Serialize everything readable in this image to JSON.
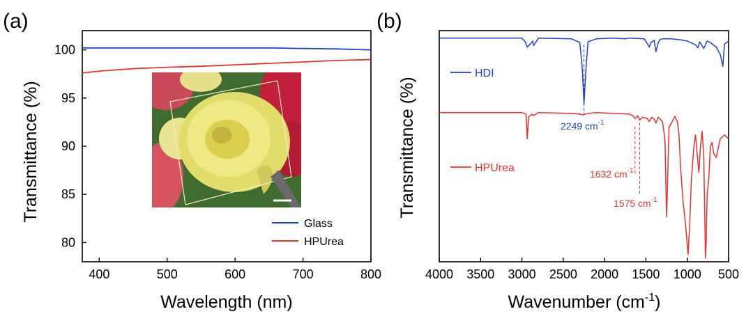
{
  "chart_data": [
    {
      "panel_label": "(a)",
      "type": "line",
      "xlabel": "Wavelength (nm)",
      "ylabel": "Transmittance (%)",
      "xlim": [
        375,
        800
      ],
      "ylim": [
        78,
        102
      ],
      "x_ticks": [
        400,
        500,
        600,
        700,
        800
      ],
      "y_ticks": [
        80,
        85,
        90,
        95,
        100
      ],
      "legend": {
        "placement": "bottom-right"
      },
      "grid": false,
      "series": [
        {
          "name": "Glass",
          "color": "#1f3fcf",
          "x": [
            375,
            450,
            500,
            550,
            600,
            650,
            700,
            750,
            800
          ],
          "values": [
            100.2,
            100.2,
            100.2,
            100.2,
            100.2,
            100.2,
            100.15,
            100.1,
            100.0
          ]
        },
        {
          "name": "HPUrea",
          "color": "#e8312f",
          "x": [
            375,
            400,
            450,
            500,
            550,
            600,
            650,
            700,
            750,
            800
          ],
          "values": [
            97.6,
            97.8,
            98.05,
            98.2,
            98.3,
            98.45,
            98.6,
            98.75,
            98.9,
            99.0
          ]
        }
      ],
      "inset": {
        "type": "photo",
        "subject": "yellow-flower-under-transparent-film"
      }
    },
    {
      "panel_label": "(b)",
      "type": "line",
      "xlabel": "Wavenumber (cm",
      "xlabel_superscript": "-1",
      "xlabel_suffix": ")",
      "ylabel": "Transmittance (%)",
      "xlim": [
        4000,
        500
      ],
      "x_ticks": [
        4000,
        3500,
        3000,
        2500,
        2000,
        1500,
        1000,
        500
      ],
      "y_ticks_shown": false,
      "series": [
        {
          "name": "HDI",
          "color": "#1f3fcf",
          "offset": 100,
          "x": [
            4000,
            3000,
            2960,
            2935,
            2900,
            2870,
            2858,
            2800,
            2400,
            2300,
            2270,
            2249,
            2225,
            2200,
            2100,
            1900,
            1750,
            1700,
            1520,
            1480,
            1460,
            1440,
            1400,
            1380,
            1350,
            1330,
            1300,
            1200,
            1100,
            1050,
            1000,
            900,
            870,
            850,
            800,
            760,
            720,
            650,
            600,
            570,
            550,
            500
          ],
          "values": [
            0,
            0,
            -5,
            -12,
            -8,
            -4,
            -10,
            0,
            -1,
            -6,
            -40,
            -88,
            -40,
            -5,
            -1,
            0,
            -1,
            0,
            -1,
            -8,
            -12,
            -6,
            -3,
            -18,
            -6,
            -2,
            -1,
            -1,
            -2,
            -3,
            -4,
            -9,
            -13,
            -5,
            -14,
            -4,
            -6,
            -12,
            -22,
            -38,
            -8,
            -4
          ]
        },
        {
          "name": "HPUrea",
          "color": "#e8312f",
          "offset": 0,
          "x": [
            4000,
            3000,
            2950,
            2935,
            2920,
            2880,
            2860,
            2800,
            2400,
            2300,
            2270,
            2200,
            2100,
            1900,
            1700,
            1660,
            1632,
            1600,
            1575,
            1540,
            1480,
            1460,
            1430,
            1400,
            1380,
            1350,
            1300,
            1270,
            1250,
            1220,
            1150,
            1120,
            1100,
            1080,
            1050,
            1020,
            990,
            970,
            950,
            920,
            900,
            880,
            860,
            840,
            820,
            800,
            780,
            770,
            760,
            740,
            720,
            700,
            680,
            650,
            600,
            550,
            500
          ],
          "values": [
            0,
            0,
            -2,
            -35,
            -6,
            -2,
            -4,
            0,
            -1,
            -2,
            -3,
            -1,
            0,
            -1,
            -2,
            -4,
            -8,
            -4,
            -10,
            -6,
            -8,
            -12,
            -6,
            -9,
            -14,
            -6,
            -12,
            -35,
            -140,
            -20,
            -5,
            -12,
            -30,
            -75,
            -120,
            -150,
            -190,
            -150,
            -90,
            -45,
            -30,
            -55,
            -80,
            -45,
            -25,
            -60,
            -195,
            -170,
            -110,
            -90,
            -45,
            -40,
            -55,
            -60,
            -35,
            -30,
            -35
          ]
        }
      ],
      "annotations": [
        {
          "text": "2249 cm",
          "sup": "-1",
          "x": 2249,
          "series": "HDI",
          "color": "#1f3fcf"
        },
        {
          "text": "1632 cm",
          "sup": "-1",
          "x": 1632,
          "series": "HPUrea",
          "color": "#e8312f"
        },
        {
          "text": "1575 cm",
          "sup": "-1",
          "x": 1575,
          "series": "HPUrea",
          "color": "#e8312f"
        }
      ],
      "legend": {
        "placement": "left",
        "style": "inline-labels"
      }
    }
  ]
}
